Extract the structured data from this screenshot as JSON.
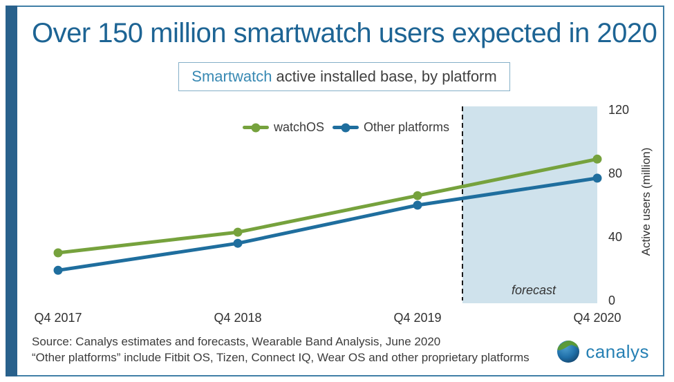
{
  "title": "Over 150 million smartwatch users expected in 2020",
  "subtitle": {
    "highlight": "Smartwatch",
    "rest": " active installed base, by platform"
  },
  "footer": {
    "source_line": "Source: Canalys estimates and forecasts, Wearable Band Analysis, June 2020",
    "note_line": "“Other platforms” include Fitbit OS, Tizen, Connect IQ, Wear OS and other proprietary platforms"
  },
  "logo": {
    "text": "canalys",
    "icon": "canalys-globe-icon"
  },
  "colors": {
    "title": "#1D6494",
    "accent_bar": "#29618C",
    "card_border": "#3F7EA6",
    "subtitle_highlight": "#3889B3",
    "forecast_band": "#CFE2EC",
    "dashed_line": "#1A1A1A",
    "text_dark": "#3B3B3B",
    "watchos_green": "#76A23D",
    "other_platforms_blue": "#1F6E9E"
  },
  "chart_data": {
    "type": "line",
    "title": "Smartwatch active installed base, by platform",
    "categories": [
      "Q4 2017",
      "Q4 2018",
      "Q4 2019",
      "Q4 2020"
    ],
    "series": [
      {
        "name": "watchOS",
        "values": [
          30,
          43,
          66,
          89
        ],
        "color": "#76A23D"
      },
      {
        "name": "Other platforms",
        "values": [
          19,
          36,
          60,
          77
        ],
        "color": "#1F6E9E"
      }
    ],
    "xlabel": "",
    "ylabel": "Active users (million)",
    "yticks": [
      0,
      40,
      80,
      120
    ],
    "ylim": [
      0,
      120
    ],
    "grid": false,
    "legend_position": "top-center",
    "forecast": {
      "label": "forecast",
      "start_category_index": 2.25
    }
  }
}
